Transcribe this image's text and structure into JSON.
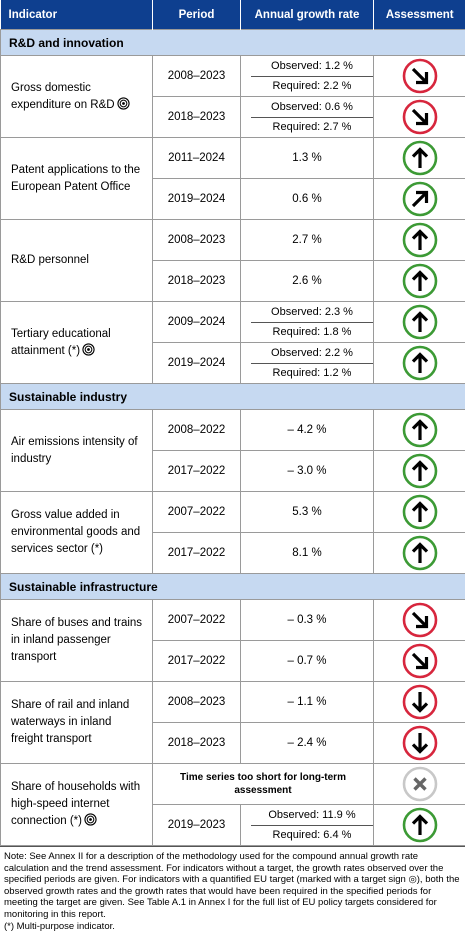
{
  "header": {
    "indicator": "Indicator",
    "period": "Period",
    "growth": "Annual growth rate",
    "assessment": "Assessment"
  },
  "sections": [
    {
      "title": "R&D and innovation",
      "indicators": [
        {
          "name": "Gross domestic expenditure on R&D",
          "rows": [
            {
              "period": "2008–2023",
              "observed": "Observed: 1.2 %",
              "required": "Required: 2.2 %"
            },
            {
              "period": "2018–2023",
              "observed": "Observed: 0.6 %",
              "required": "Required: 2.7 %"
            }
          ]
        },
        {
          "name": "Patent applications to the European Patent Office",
          "rows": [
            {
              "period": "2011–2024",
              "growth": "1.3 %"
            },
            {
              "period": "2019–2024",
              "growth": "0.6 %"
            }
          ]
        },
        {
          "name": "R&D personnel",
          "rows": [
            {
              "period": "2008–2023",
              "growth": "2.7 %"
            },
            {
              "period": "2018–2023",
              "growth": "2.6 %"
            }
          ]
        },
        {
          "name": "Tertiary educational attainment (*)",
          "rows": [
            {
              "period": "2009–2024",
              "observed": "Observed: 2.3 %",
              "required": "Required: 1.8 %"
            },
            {
              "period": "2019–2024",
              "observed": "Observed: 2.2 %",
              "required": "Required: 1.2 %"
            }
          ]
        }
      ]
    },
    {
      "title": "Sustainable industry",
      "indicators": [
        {
          "name": "Air emissions intensity of industry",
          "rows": [
            {
              "period": "2008–2022",
              "growth": "– 4.2 %"
            },
            {
              "period": "2017–2022",
              "growth": "– 3.0 %"
            }
          ]
        },
        {
          "name": "Gross value added in environmental goods and services sector (*)",
          "rows": [
            {
              "period": "2007–2022",
              "growth": "5.3 %"
            },
            {
              "period": "2017–2022",
              "growth": "8.1 %"
            }
          ]
        }
      ]
    },
    {
      "title": "Sustainable infrastructure",
      "indicators": [
        {
          "name": "Share of buses and trains in inland passenger transport",
          "rows": [
            {
              "period": "2007–2022",
              "growth": "– 0.3 %"
            },
            {
              "period": "2017–2022",
              "growth": "– 0.7 %"
            }
          ]
        },
        {
          "name": "Share of rail and inland waterways in inland freight transport",
          "rows": [
            {
              "period": "2008–2023",
              "growth": "– 1.1 %"
            },
            {
              "period": "2018–2023",
              "growth": "– 2.4 %"
            }
          ]
        },
        {
          "name": "Share of households with high-speed internet connection (*)",
          "rows": [
            {
              "note": "Time series too short for long-term assessment"
            },
            {
              "period": "2019–2023",
              "observed": "Observed: 11.9 %",
              "required": "Required: 6.4 %"
            }
          ]
        }
      ]
    }
  ],
  "note": "Note: See Annex II for a description of the methodology used for the compound annual growth rate calculation and the trend assessment. For indicators without a target, the growth rates observed over the specified periods are given. For indicators with a quantified EU target (marked with a target sign ◎), both the observed growth rates and the growth rates that would have been required in the specified periods for meeting the target are given. See Table A.1 in Annex I for the full list of EU policy targets considered for monitoring in this report.",
  "footnote": "(*) Multi-purpose indicator."
}
